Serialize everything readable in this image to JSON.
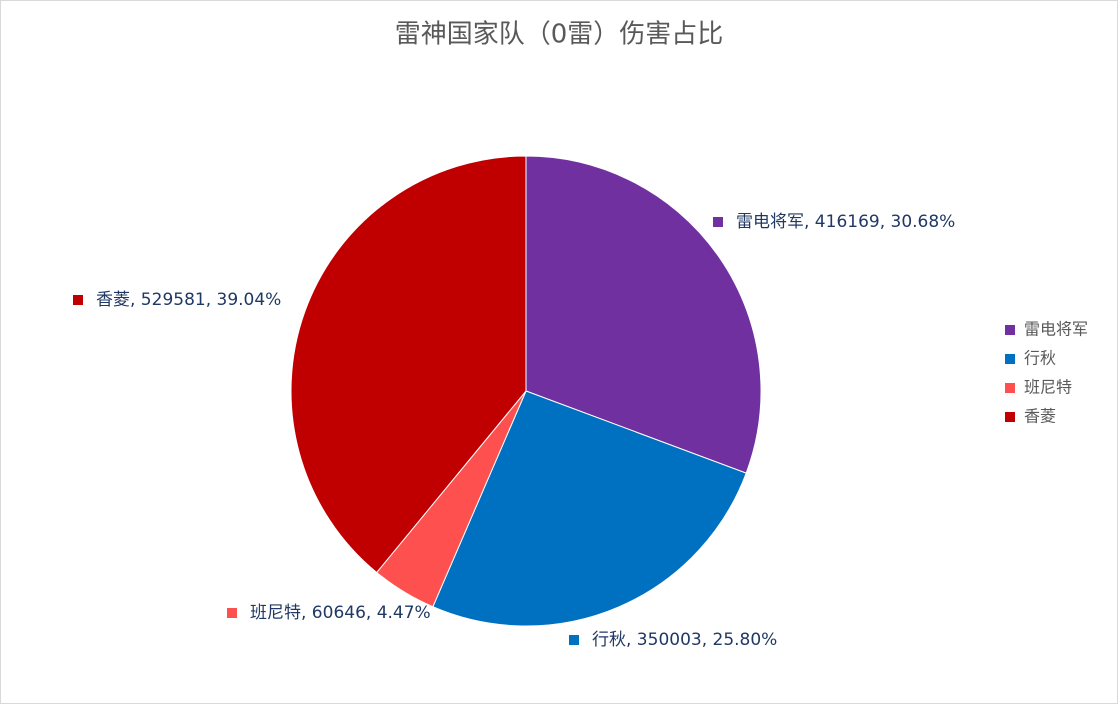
{
  "chart_data": {
    "type": "pie",
    "title": "雷神国家队（0雷）伤害占比",
    "categories": [
      "雷电将军",
      "行秋",
      "班尼特",
      "香菱"
    ],
    "values": [
      416169,
      350003,
      60646,
      529581
    ],
    "value_labels": [
      "雷电将军, 416169, 30.68%",
      "行秋, 350003, 25.80%",
      "班尼特, 60646, 4.47%",
      "香菱, 529581, 39.04%"
    ],
    "colors": [
      "#7030a0",
      "#0070c0",
      "#ff5050",
      "#c00000"
    ],
    "legend": "right"
  }
}
